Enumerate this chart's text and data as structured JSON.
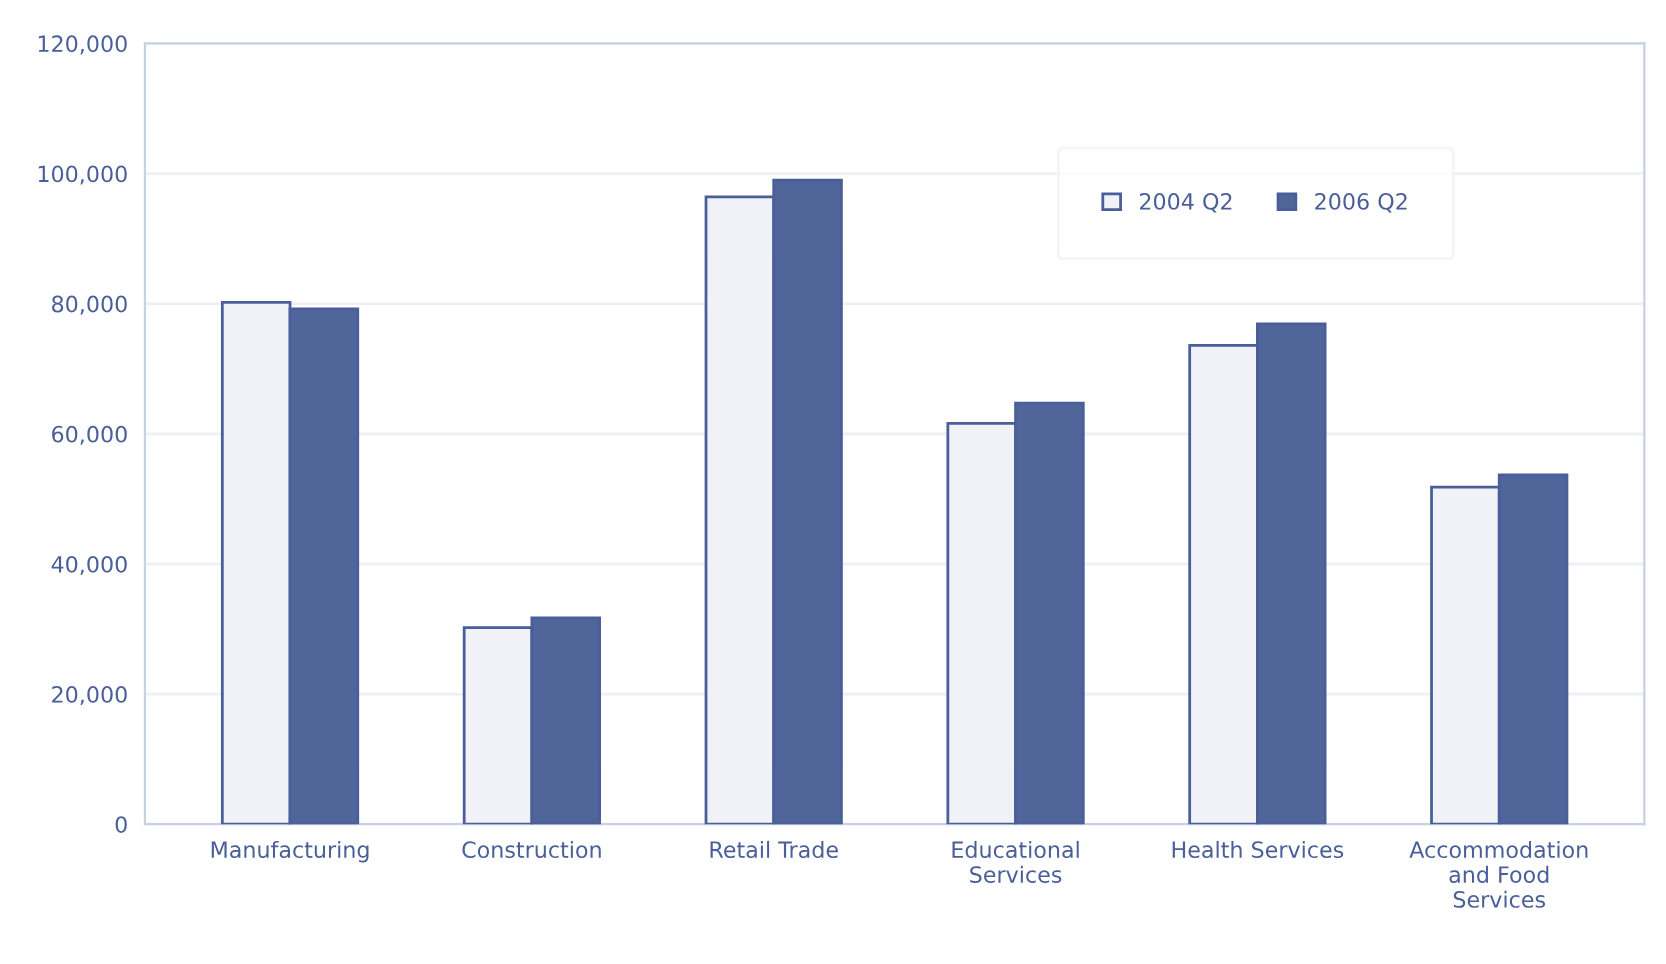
{
  "chart_data": {
    "type": "bar",
    "categories": [
      "Manufacturing",
      "Construction",
      "Retail Trade",
      "Educational\nServices",
      "Health Services",
      "Accommodation\nand Food\nServices"
    ],
    "series": [
      {
        "name": "2004 Q2",
        "color": "#f0f2f8",
        "values": [
          80200,
          30200,
          96400,
          61600,
          73600,
          51800
        ]
      },
      {
        "name": "2006 Q2",
        "color": "#50659a",
        "values": [
          79200,
          31700,
          99000,
          64700,
          76900,
          53700
        ]
      }
    ],
    "ylim": [
      0,
      120000
    ],
    "yticks": [
      {
        "value": 0,
        "label": "0"
      },
      {
        "value": 20000,
        "label": "20,000"
      },
      {
        "value": 40000,
        "label": "40,000"
      },
      {
        "value": 60000,
        "label": "60,000"
      },
      {
        "value": 80000,
        "label": "80,000"
      },
      {
        "value": 100000,
        "label": "100,000"
      },
      {
        "value": 120000,
        "label": "120,000"
      }
    ],
    "grid": "y",
    "legend": "top right"
  }
}
